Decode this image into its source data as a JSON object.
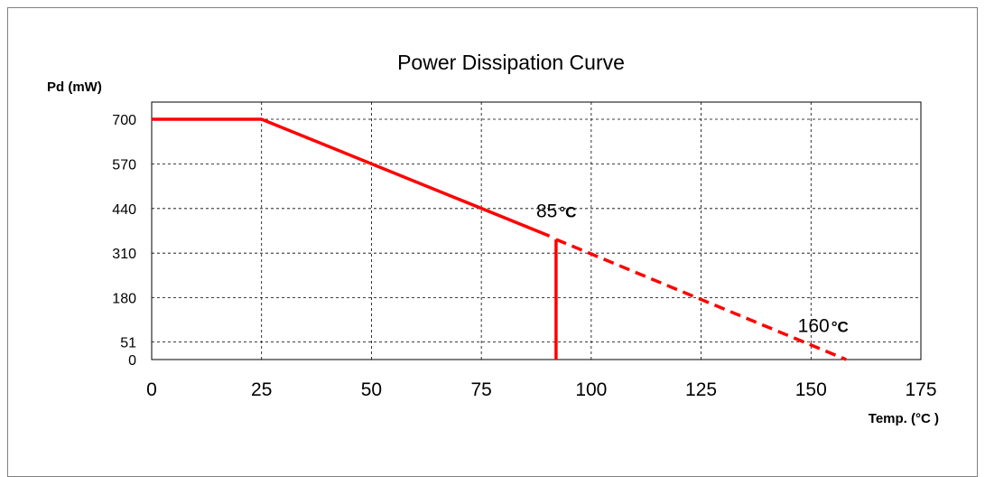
{
  "chart_data": {
    "type": "line",
    "title": "Power Dissipation Curve",
    "ylabel": "Pd (mW)",
    "xlabel": "Temp. (°C )",
    "xlim": [
      0,
      175
    ],
    "ylim": [
      0,
      750
    ],
    "x_ticks": [
      "0",
      "25",
      "50",
      "75",
      "100",
      "125",
      "150",
      "175"
    ],
    "x_tick_values": [
      0,
      25,
      50,
      75,
      100,
      125,
      150,
      175
    ],
    "y_ticks": [
      "700",
      "570",
      "440",
      "310",
      "180",
      "51",
      "0"
    ],
    "y_tick_values": [
      700,
      570,
      440,
      310,
      180,
      51,
      0
    ],
    "grid": true,
    "grid_style": "dashed",
    "line_color": "#ff0000",
    "series": [
      {
        "style": "solid",
        "points": [
          [
            0,
            700
          ],
          [
            25,
            700
          ],
          [
            90.5,
            360
          ]
        ]
      },
      {
        "style": "dashed",
        "points": [
          [
            92,
            350
          ],
          [
            158,
            0
          ]
        ]
      },
      {
        "style": "solid-vertical",
        "points": [
          [
            92,
            350
          ],
          [
            92,
            0
          ]
        ]
      }
    ],
    "annotations": [
      {
        "text": "85",
        "unit": "°C",
        "x": 87.5,
        "y": 415
      },
      {
        "text": "160",
        "unit": "°C",
        "x": 147,
        "y": 80
      }
    ]
  }
}
